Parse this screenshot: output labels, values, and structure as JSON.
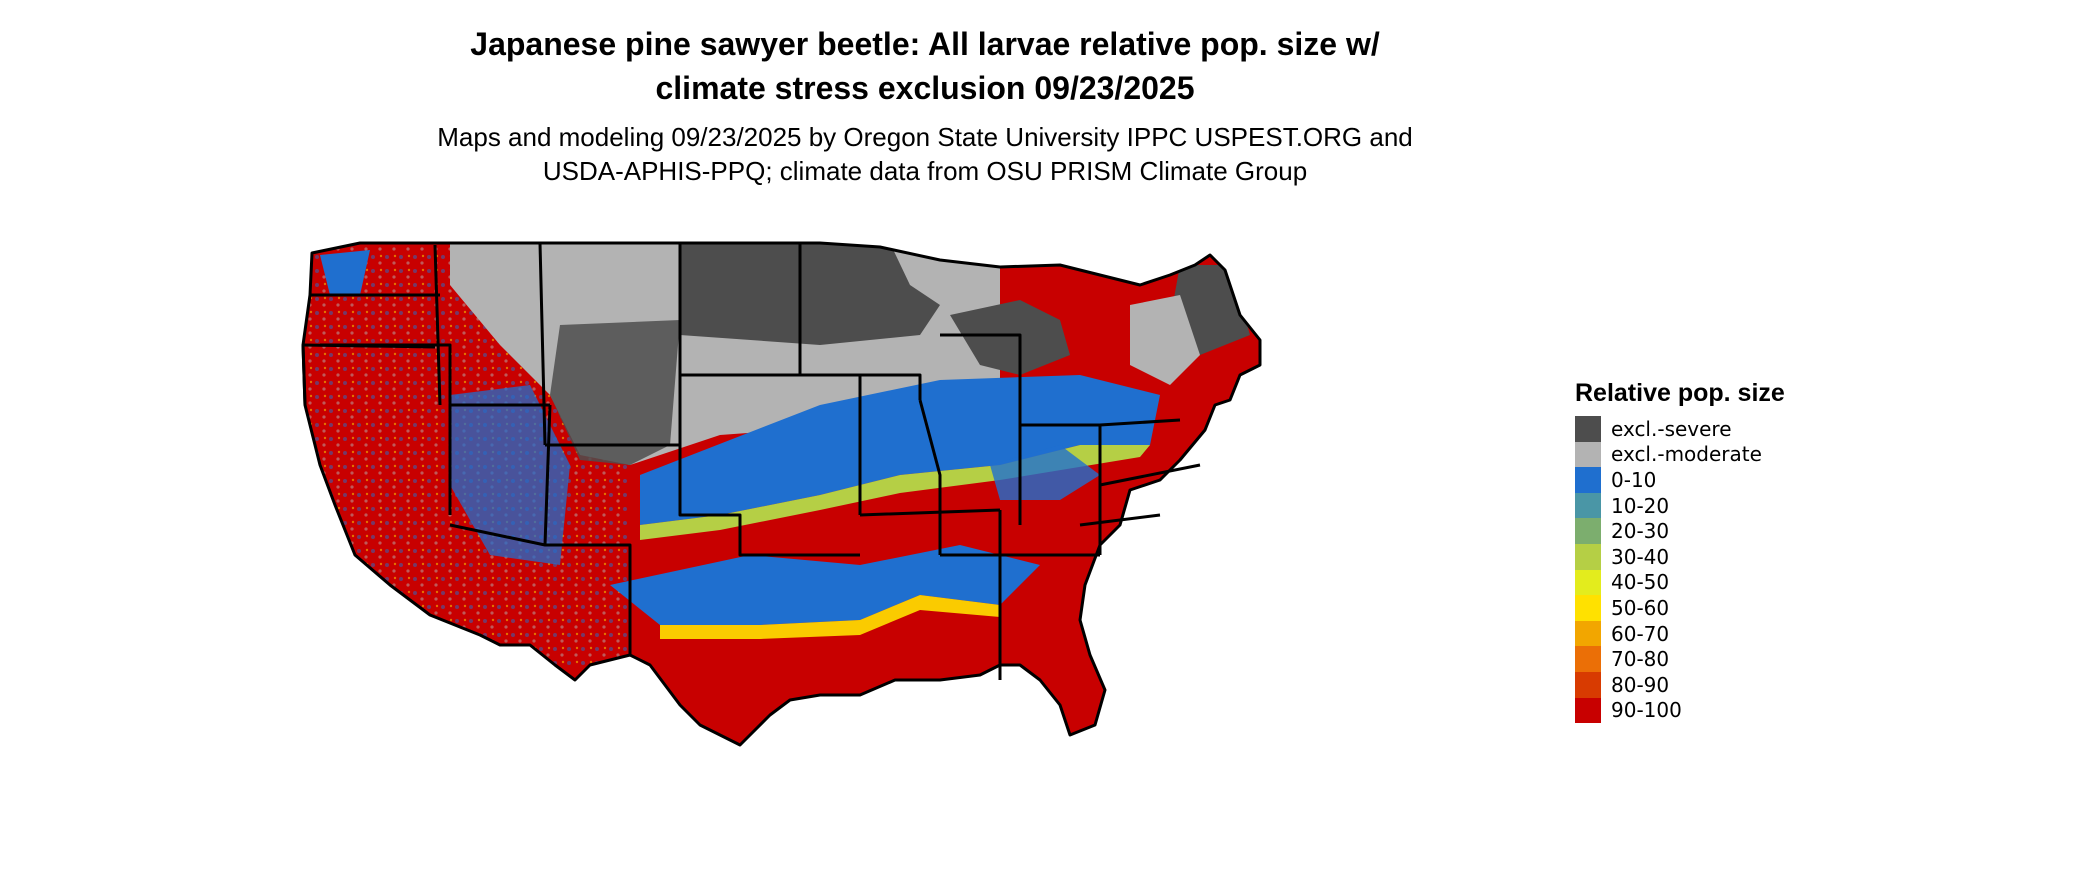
{
  "header": {
    "title_line1": "Japanese pine sawyer beetle: All larvae relative pop. size w/",
    "title_line2": "climate stress exclusion 09/23/2025",
    "subtitle_line1": "Maps and modeling 09/23/2025 by Oregon State University IPPC USPEST.ORG and",
    "subtitle_line2": "USDA-APHIS-PPQ; climate data from OSU PRISM Climate Group"
  },
  "legend": {
    "title": "Relative pop. size",
    "items": [
      {
        "label": "excl.-severe",
        "color": "#4d4d4d"
      },
      {
        "label": "excl.-moderate",
        "color": "#b3b3b3"
      },
      {
        "label": "0-10",
        "color": "#1f6fcf"
      },
      {
        "label": "10-20",
        "color": "#4a96a6"
      },
      {
        "label": "20-30",
        "color": "#7cae6e"
      },
      {
        "label": "30-40",
        "color": "#b5cf45"
      },
      {
        "label": "40-50",
        "color": "#e3ec1d"
      },
      {
        "label": "50-60",
        "color": "#ffe100"
      },
      {
        "label": "60-70",
        "color": "#f2a600"
      },
      {
        "label": "70-80",
        "color": "#eb6f06"
      },
      {
        "label": "80-90",
        "color": "#d83b01"
      },
      {
        "label": "90-100",
        "color": "#c80000"
      }
    ]
  },
  "map": {
    "region": "contiguous-united-states",
    "border_color": "#000000"
  }
}
